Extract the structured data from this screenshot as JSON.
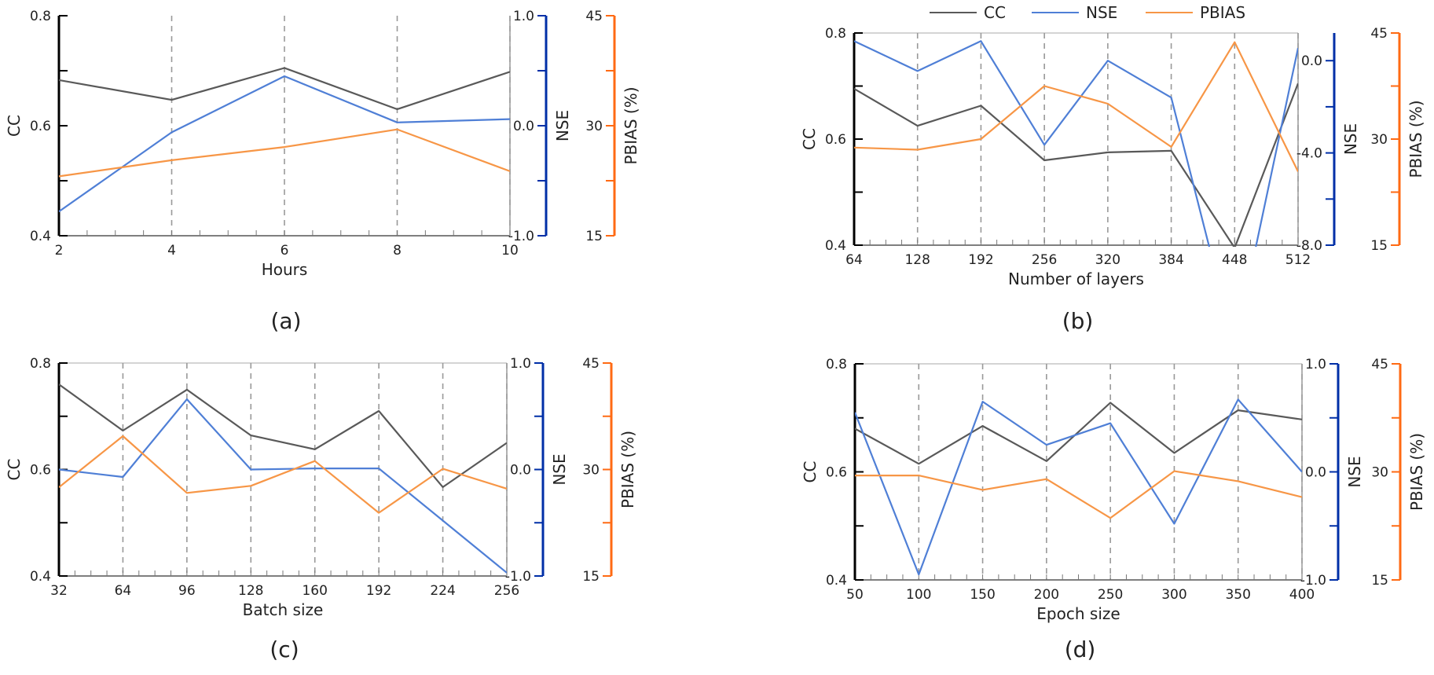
{
  "colors": {
    "cc": "#595959",
    "nse": "#4f7fd6",
    "pbias": "#f79646",
    "cc_axis": "#000000",
    "nse_axis": "#002fa7",
    "pbias_axis": "#ff6a13",
    "grid": "#999999"
  },
  "legend": {
    "placement": "top-center",
    "items": [
      "CC",
      "NSE",
      "PBIAS"
    ]
  },
  "chart_data": [
    {
      "type": "line",
      "panel_label": "(a)",
      "xlabel": "Hours",
      "x": [
        2,
        4,
        6,
        8,
        10
      ],
      "x_tick_labels": [
        "2",
        "4",
        "6",
        "8",
        "10"
      ],
      "y_left_label": "CC",
      "y_left_ticks": [
        "0.4",
        "0.6",
        "0.8"
      ],
      "y_left_range": [
        0.4,
        0.8
      ],
      "y_mid_label": "NSE",
      "y_mid_ticks": [
        "-1.0",
        "0.0",
        "1.0"
      ],
      "y_mid_range": [
        -1.0,
        1.0
      ],
      "y_right_label": "PBIAS (%)",
      "y_right_ticks": [
        "15",
        "30",
        "45"
      ],
      "y_right_range": [
        15,
        45
      ],
      "grid": "vertical dashed",
      "series": [
        {
          "name": "CC",
          "axis": "left",
          "values": [
            0.683,
            0.647,
            0.705,
            0.63,
            0.698
          ]
        },
        {
          "name": "NSE",
          "axis": "mid",
          "values": [
            -0.78,
            -0.06,
            0.45,
            0.03,
            0.06
          ]
        },
        {
          "name": "PBIAS",
          "axis": "right",
          "values": [
            23.1,
            25.3,
            27.1,
            29.5,
            23.8
          ]
        }
      ]
    },
    {
      "type": "line",
      "panel_label": "(b)",
      "xlabel": "Number of layers",
      "x": [
        64,
        128,
        192,
        256,
        320,
        384,
        448,
        512
      ],
      "x_tick_labels": [
        "64",
        "128",
        "192",
        "256",
        "320",
        "384",
        "448",
        "512"
      ],
      "y_left_label": "CC",
      "y_left_ticks": [
        "0.4",
        "0.6",
        "0.8"
      ],
      "y_left_range": [
        0.4,
        0.8
      ],
      "y_mid_label": "NSE",
      "y_mid_ticks": [
        "-8.0",
        "-4.0",
        "0.0"
      ],
      "y_mid_range": [
        -8.0,
        1.2
      ],
      "y_right_label": "PBIAS (%)",
      "y_right_ticks": [
        "15",
        "30",
        "45"
      ],
      "y_right_range": [
        15,
        45
      ],
      "grid": "vertical dashed",
      "series": [
        {
          "name": "CC",
          "axis": "left",
          "values": [
            0.695,
            0.625,
            0.663,
            0.56,
            0.575,
            0.578,
            0.395,
            0.705
          ]
        },
        {
          "name": "NSE",
          "axis": "mid",
          "values": [
            0.85,
            -0.45,
            0.85,
            -3.65,
            0.0,
            -1.6,
            -12.4,
            0.55
          ]
        },
        {
          "name": "PBIAS",
          "axis": "right",
          "values": [
            28.8,
            28.5,
            30.0,
            37.5,
            35.0,
            28.9,
            43.7,
            25.4
          ]
        }
      ]
    },
    {
      "type": "line",
      "panel_label": "(c)",
      "xlabel": "Batch size",
      "x": [
        32,
        64,
        96,
        128,
        160,
        192,
        224,
        256
      ],
      "x_tick_labels": [
        "32",
        "64",
        "96",
        "128",
        "160",
        "192",
        "224",
        "256"
      ],
      "y_left_label": "CC",
      "y_left_ticks": [
        "0.4",
        "0.6",
        "0.8"
      ],
      "y_left_range": [
        0.4,
        0.8
      ],
      "y_mid_label": "NSE",
      "y_mid_ticks": [
        "-1.0",
        "0.0",
        "1.0"
      ],
      "y_mid_range": [
        -1.0,
        1.0
      ],
      "y_right_label": "PBIAS (%)",
      "y_right_ticks": [
        "15",
        "30",
        "45"
      ],
      "y_right_range": [
        15,
        45
      ],
      "grid": "vertical dashed",
      "series": [
        {
          "name": "CC",
          "axis": "left",
          "values": [
            0.76,
            0.673,
            0.75,
            0.664,
            0.638,
            0.71,
            0.567,
            0.65
          ]
        },
        {
          "name": "NSE",
          "axis": "mid",
          "values": [
            0.0,
            -0.07,
            0.66,
            0.0,
            0.01,
            0.01,
            -0.48,
            -0.97
          ]
        },
        {
          "name": "PBIAS",
          "axis": "right",
          "values": [
            27.5,
            34.7,
            26.7,
            27.7,
            31.2,
            23.9,
            30.1,
            27.3
          ]
        }
      ]
    },
    {
      "type": "line",
      "panel_label": "(d)",
      "xlabel": "Epoch size",
      "x": [
        50,
        100,
        150,
        200,
        250,
        300,
        350,
        400
      ],
      "x_tick_labels": [
        "50",
        "100",
        "150",
        "200",
        "250",
        "300",
        "350",
        "400"
      ],
      "y_left_label": "CC",
      "y_left_ticks": [
        "0.4",
        "0.6",
        "0.8"
      ],
      "y_left_range": [
        0.4,
        0.8
      ],
      "y_mid_label": "NSE",
      "y_mid_ticks": [
        "-1.0",
        "0.0",
        "1.0"
      ],
      "y_mid_range": [
        -1.0,
        1.0
      ],
      "y_right_label": "PBIAS (%)",
      "y_right_ticks": [
        "15",
        "30",
        "45"
      ],
      "y_right_range": [
        15,
        45
      ],
      "grid": "vertical dashed",
      "series": [
        {
          "name": "CC",
          "axis": "left",
          "values": [
            0.68,
            0.615,
            0.685,
            0.62,
            0.728,
            0.635,
            0.714,
            0.697
          ]
        },
        {
          "name": "NSE",
          "axis": "mid",
          "values": [
            0.55,
            -0.95,
            0.65,
            0.25,
            0.45,
            -0.48,
            0.67,
            0.0
          ]
        },
        {
          "name": "PBIAS",
          "axis": "right",
          "values": [
            29.5,
            29.5,
            27.5,
            29.0,
            23.6,
            30.1,
            28.7,
            26.5
          ]
        }
      ]
    }
  ]
}
